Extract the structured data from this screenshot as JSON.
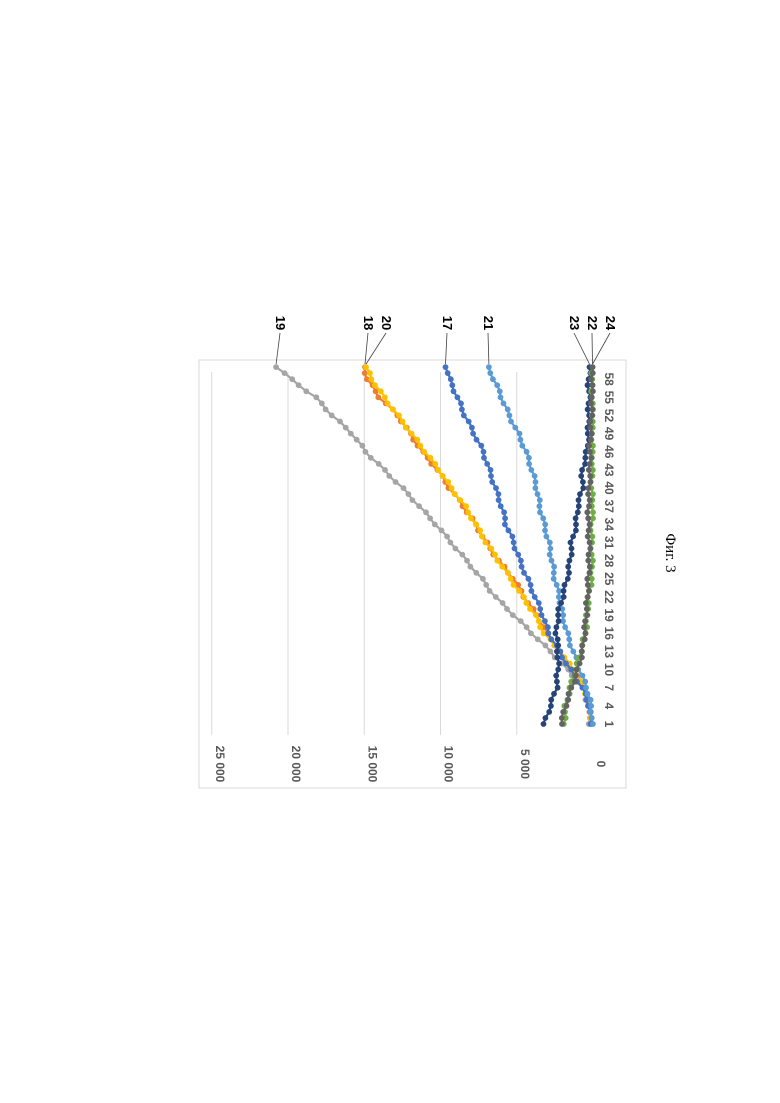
{
  "caption": "Фиг. 3",
  "chart_data": {
    "type": "line",
    "orientation": "rotated-90-clockwise",
    "title": "",
    "xlabel": "",
    "ylabel": "",
    "ylim": [
      0,
      25000
    ],
    "y_ticks": [
      0,
      5000,
      10000,
      15000,
      20000,
      25000
    ],
    "y_tick_labels": [
      "0",
      "5 000",
      "10 000",
      "15 000",
      "20 000",
      "25 000"
    ],
    "x_range": [
      1,
      60
    ],
    "x_tick_labels": [
      "1",
      "4",
      "7",
      "10",
      "13",
      "16",
      "19",
      "22",
      "25",
      "28",
      "31",
      "34",
      "37",
      "40",
      "43",
      "46",
      "49",
      "52",
      "55",
      "58"
    ],
    "grid": true,
    "series": [
      {
        "name": "19",
        "color": "#a5a5a5",
        "anchors": [
          [
            1,
            200
          ],
          [
            4,
            300
          ],
          [
            7,
            700
          ],
          [
            10,
            1700
          ],
          [
            13,
            2800
          ],
          [
            16,
            4000
          ],
          [
            19,
            5200
          ],
          [
            22,
            6400
          ],
          [
            25,
            7300
          ],
          [
            28,
            8300
          ],
          [
            31,
            9300
          ],
          [
            34,
            10300
          ],
          [
            37,
            11400
          ],
          [
            40,
            12500
          ],
          [
            43,
            13700
          ],
          [
            46,
            14900
          ],
          [
            49,
            15800
          ],
          [
            52,
            17100
          ],
          [
            55,
            18200
          ],
          [
            58,
            19800
          ],
          [
            60,
            20700
          ]
        ]
      },
      {
        "name": "18",
        "color": "#ed7d31",
        "anchors": [
          [
            1,
            100
          ],
          [
            4,
            200
          ],
          [
            7,
            500
          ],
          [
            10,
            1400
          ],
          [
            13,
            2200
          ],
          [
            16,
            3000
          ],
          [
            19,
            3700
          ],
          [
            22,
            4500
          ],
          [
            25,
            5200
          ],
          [
            28,
            6200
          ],
          [
            31,
            7000
          ],
          [
            34,
            7700
          ],
          [
            37,
            8500
          ],
          [
            40,
            9400
          ],
          [
            43,
            10200
          ],
          [
            46,
            11200
          ],
          [
            49,
            12000
          ],
          [
            52,
            12800
          ],
          [
            55,
            14000
          ],
          [
            58,
            14800
          ],
          [
            60,
            15000
          ]
        ]
      },
      {
        "name": "20",
        "color": "#ffc000",
        "anchors": [
          [
            1,
            100
          ],
          [
            4,
            200
          ],
          [
            7,
            600
          ],
          [
            10,
            1300
          ],
          [
            13,
            2200
          ],
          [
            16,
            3200
          ],
          [
            19,
            3800
          ],
          [
            22,
            4600
          ],
          [
            25,
            5400
          ],
          [
            28,
            6200
          ],
          [
            31,
            7000
          ],
          [
            34,
            7700
          ],
          [
            37,
            8400
          ],
          [
            40,
            9300
          ],
          [
            43,
            10100
          ],
          [
            46,
            11000
          ],
          [
            49,
            11900
          ],
          [
            52,
            12800
          ],
          [
            55,
            13700
          ],
          [
            58,
            14500
          ],
          [
            60,
            14900
          ]
        ]
      },
      {
        "name": "17",
        "color": "#4472c4",
        "anchors": [
          [
            1,
            100
          ],
          [
            4,
            250
          ],
          [
            7,
            700
          ],
          [
            10,
            1500
          ],
          [
            13,
            2200
          ],
          [
            16,
            2900
          ],
          [
            19,
            3300
          ],
          [
            22,
            3800
          ],
          [
            25,
            4300
          ],
          [
            28,
            4800
          ],
          [
            31,
            5200
          ],
          [
            34,
            5700
          ],
          [
            37,
            6000
          ],
          [
            40,
            6400
          ],
          [
            43,
            6800
          ],
          [
            46,
            7200
          ],
          [
            49,
            7800
          ],
          [
            52,
            8400
          ],
          [
            55,
            8900
          ],
          [
            58,
            9400
          ],
          [
            60,
            9600
          ]
        ]
      },
      {
        "name": "21",
        "color": "#5b9bd5",
        "anchors": [
          [
            1,
            50
          ],
          [
            4,
            150
          ],
          [
            7,
            400
          ],
          [
            10,
            900
          ],
          [
            13,
            1300
          ],
          [
            16,
            1700
          ],
          [
            19,
            2000
          ],
          [
            22,
            2200
          ],
          [
            25,
            2500
          ],
          [
            28,
            2700
          ],
          [
            31,
            2900
          ],
          [
            34,
            3200
          ],
          [
            37,
            3500
          ],
          [
            40,
            3700
          ],
          [
            43,
            4000
          ],
          [
            46,
            4400
          ],
          [
            49,
            4900
          ],
          [
            52,
            5500
          ],
          [
            55,
            6000
          ],
          [
            58,
            6500
          ],
          [
            60,
            6900
          ]
        ]
      },
      {
        "name": "23",
        "color": "#264478",
        "anchors": [
          [
            1,
            3200
          ],
          [
            4,
            2800
          ],
          [
            7,
            2400
          ],
          [
            10,
            2300
          ],
          [
            13,
            2300
          ],
          [
            16,
            2400
          ],
          [
            19,
            2300
          ],
          [
            22,
            2000
          ],
          [
            25,
            1700
          ],
          [
            28,
            1500
          ],
          [
            31,
            1400
          ],
          [
            34,
            1100
          ],
          [
            37,
            1000
          ],
          [
            40,
            700
          ],
          [
            43,
            700
          ],
          [
            46,
            400
          ],
          [
            49,
            300
          ],
          [
            52,
            300
          ],
          [
            55,
            250
          ],
          [
            58,
            300
          ],
          [
            60,
            200
          ]
        ]
      },
      {
        "name": "22",
        "color": "#70ad47",
        "anchors": [
          [
            1,
            1900
          ],
          [
            4,
            1800
          ],
          [
            7,
            1500
          ],
          [
            10,
            1100
          ],
          [
            13,
            800
          ],
          [
            16,
            500
          ],
          [
            19,
            400
          ],
          [
            22,
            300
          ],
          [
            25,
            100
          ],
          [
            28,
            50
          ],
          [
            31,
            100
          ],
          [
            34,
            100
          ],
          [
            37,
            0
          ],
          [
            40,
            100
          ],
          [
            43,
            50
          ],
          [
            46,
            0
          ],
          [
            49,
            50
          ],
          [
            52,
            0
          ],
          [
            55,
            50
          ],
          [
            58,
            100
          ],
          [
            60,
            0
          ]
        ]
      },
      {
        "name": "24",
        "color": "#636363",
        "anchors": [
          [
            1,
            2100
          ],
          [
            4,
            1800
          ],
          [
            7,
            1400
          ],
          [
            10,
            1000
          ],
          [
            13,
            700
          ],
          [
            16,
            550
          ],
          [
            19,
            450
          ],
          [
            22,
            350
          ],
          [
            25,
            300
          ],
          [
            28,
            250
          ],
          [
            31,
            250
          ],
          [
            34,
            300
          ],
          [
            37,
            300
          ],
          [
            40,
            250
          ],
          [
            43,
            200
          ],
          [
            46,
            200
          ],
          [
            49,
            150
          ],
          [
            52,
            100
          ],
          [
            55,
            50
          ],
          [
            58,
            50
          ],
          [
            60,
            0
          ]
        ]
      }
    ],
    "callout_order": [
      "19",
      "18",
      "20",
      "17",
      "21",
      "23",
      "22",
      "24"
    ]
  }
}
